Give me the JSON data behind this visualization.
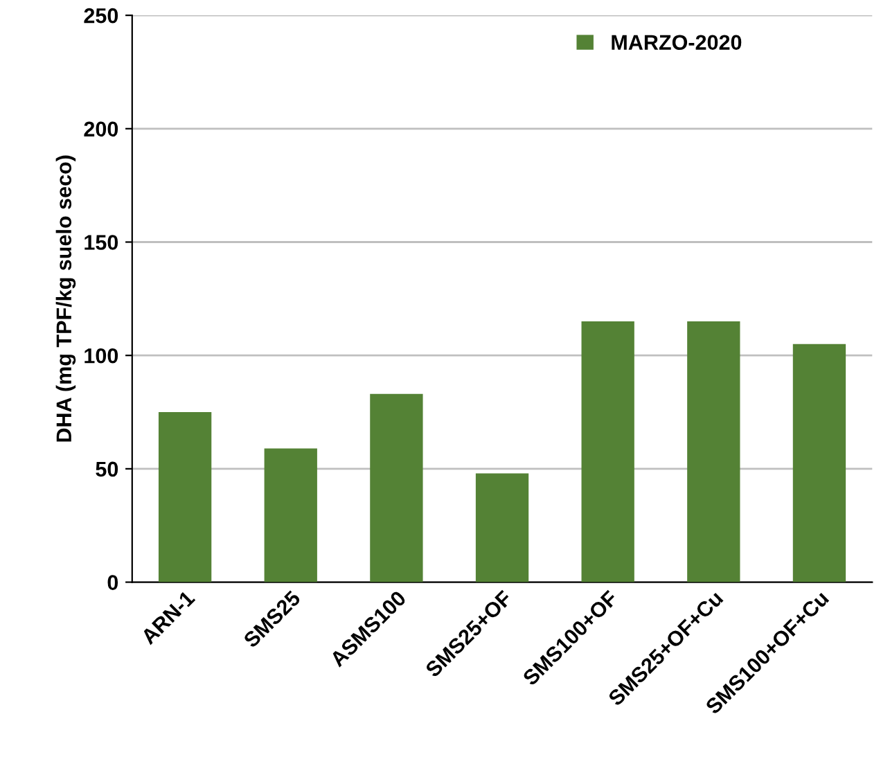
{
  "chart_data": {
    "type": "bar",
    "ylabel": "DHA (mg TPF/kg suelo seco)",
    "categories": [
      "ARN-1",
      "SMS25",
      "ASMS100",
      "SMS25+OF",
      "SMS100+OF",
      "SMS25+OF+Cu",
      "SMS100+OF+Cu"
    ],
    "series": [
      {
        "name": "MARZO-2020",
        "color": "#548235",
        "values": [
          75,
          59,
          83,
          48,
          115,
          115,
          105
        ]
      }
    ],
    "ylim": [
      0,
      250
    ],
    "yticks": [
      0,
      50,
      100,
      150,
      200,
      250
    ],
    "grid": "y",
    "legend": "top right"
  }
}
